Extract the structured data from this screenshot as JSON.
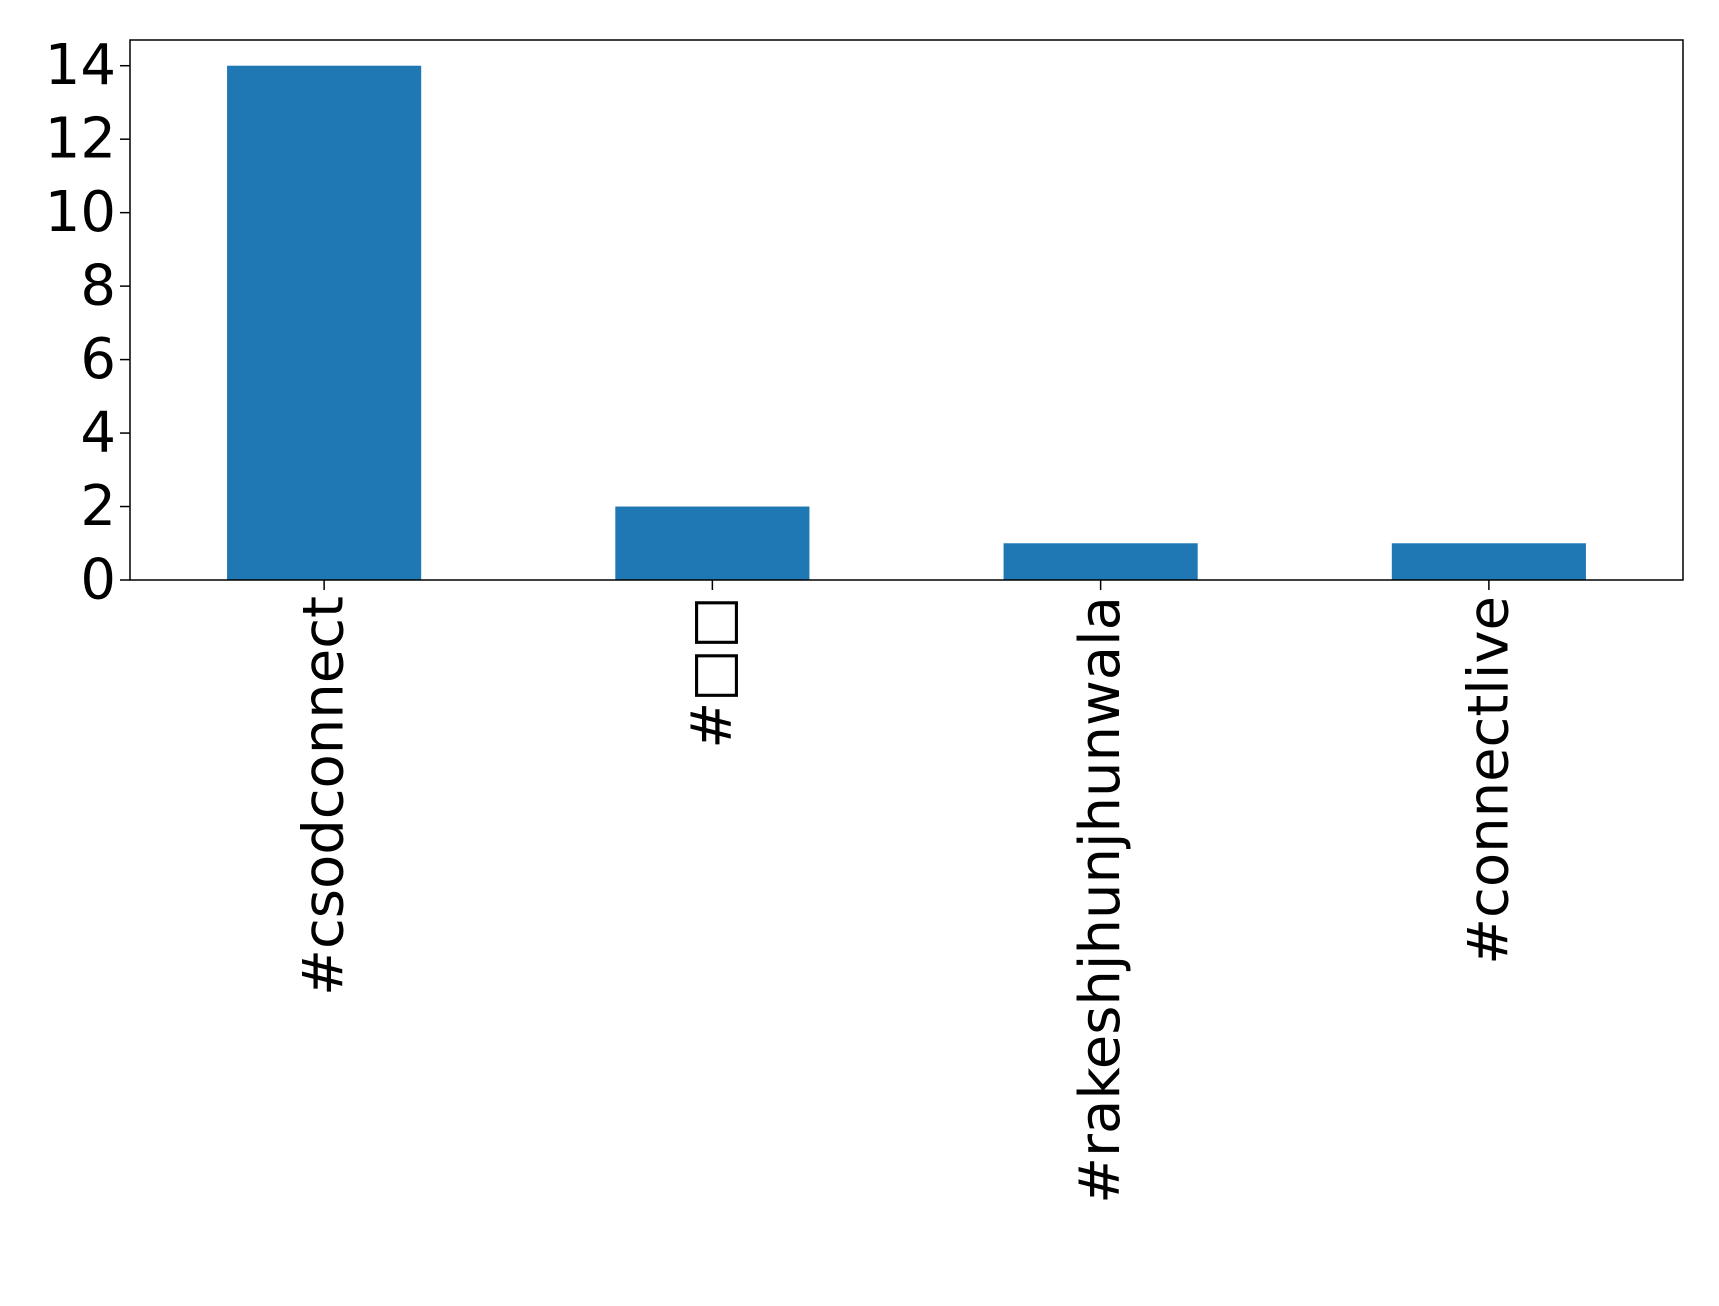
{
  "chart_data": {
    "type": "bar",
    "categories": [
      "#csodconnect",
      "#□□",
      "#rakeshjhunjhunwala",
      "#connectlive"
    ],
    "values": [
      14,
      2,
      1,
      1
    ],
    "title": "",
    "xlabel": "",
    "ylabel": "",
    "ylim": [
      0,
      14.7
    ],
    "yticks": [
      0,
      2,
      4,
      6,
      8,
      10,
      12,
      14
    ],
    "grid": false,
    "legend": "none",
    "bar_color": "#1f77b4",
    "axis_color": "#000000"
  }
}
